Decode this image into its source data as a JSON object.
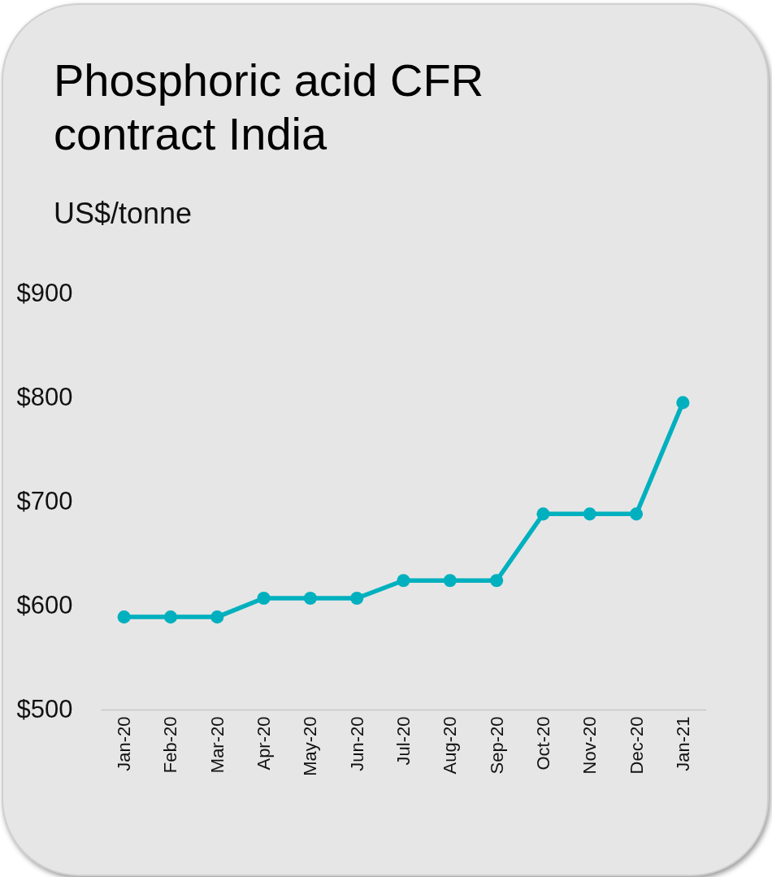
{
  "chart_data": {
    "type": "line",
    "title": "Phosphoric acid CFR contract India",
    "subtitle": "US$/tonne",
    "categories": [
      "Jan-20",
      "Feb-20",
      "Mar-20",
      "Apr-20",
      "May-20",
      "Jun-20",
      "Jul-20",
      "Aug-20",
      "Sep-20",
      "Oct-20",
      "Nov-20",
      "Dec-20",
      "Jan-21"
    ],
    "series": [
      {
        "color": "#00b0be",
        "values": [
          589,
          589,
          589,
          607,
          607,
          607,
          624,
          624,
          624,
          688,
          688,
          688,
          795
        ]
      }
    ],
    "ylim": [
      500,
      900
    ],
    "yticks": [
      {
        "value": 500,
        "label": "$500"
      },
      {
        "value": 600,
        "label": "$600"
      },
      {
        "value": 700,
        "label": "$700"
      },
      {
        "value": 800,
        "label": "$800"
      },
      {
        "value": 900,
        "label": "$900"
      }
    ],
    "marker": "circle"
  }
}
